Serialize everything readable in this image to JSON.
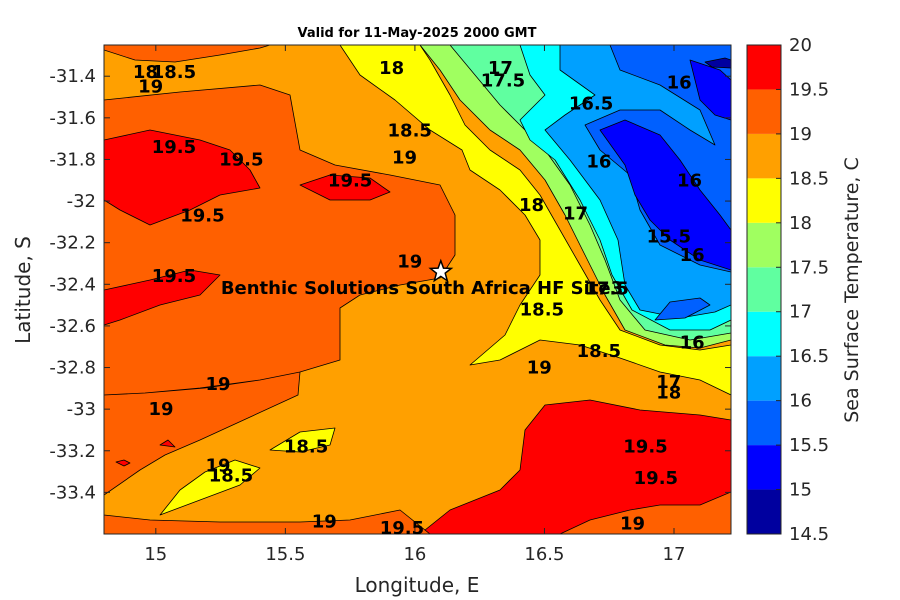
{
  "chart_data": {
    "type": "contour",
    "title": "Valid for 11-May-2025 2000 GMT",
    "xlabel": "Longitude, E",
    "ylabel": "Latitude, S",
    "xlim": [
      14.8,
      17.22
    ],
    "ylim": [
      -33.6,
      -31.25
    ],
    "xticks": [
      15,
      15.5,
      16,
      16.5,
      17
    ],
    "xtick_labels": [
      "15",
      "15.5",
      "16",
      "16.5",
      "17"
    ],
    "yticks": [
      -31.4,
      -31.6,
      -31.8,
      -32,
      -32.2,
      -32.4,
      -32.6,
      -32.8,
      -33,
      -33.2,
      -33.4
    ],
    "ytick_labels": [
      "-31.4",
      "-31.6",
      "-31.8",
      "-32",
      "-32.2",
      "-32.4",
      "-32.6",
      "-32.8",
      "-33",
      "-33.2",
      "-33.4"
    ],
    "colorbar": {
      "label": "Sea Surface Temperature, C",
      "min": 14.5,
      "max": 20,
      "ticks": [
        "14.5",
        "15",
        "15.5",
        "16",
        "16.5",
        "17",
        "17.5",
        "18",
        "18.5",
        "19",
        "19.5",
        "20"
      ],
      "colors": [
        "#00009f",
        "#0000ff",
        "#0060ff",
        "#00a0ff",
        "#00ffff",
        "#60ffa0",
        "#a0ff60",
        "#ffff00",
        "#ffa000",
        "#ff6000",
        "#ff0000"
      ]
    },
    "contour_labels": [
      {
        "text": "18",
        "x": 14.96,
        "y": -31.38
      },
      {
        "text": "18.5",
        "x": 15.07,
        "y": -31.38
      },
      {
        "text": "19",
        "x": 14.98,
        "y": -31.45
      },
      {
        "text": "18",
        "x": 15.91,
        "y": -31.36
      },
      {
        "text": "17",
        "x": 16.33,
        "y": -31.36
      },
      {
        "text": "17.5",
        "x": 16.34,
        "y": -31.42
      },
      {
        "text": "16",
        "x": 17.02,
        "y": -31.43
      },
      {
        "text": "16.5",
        "x": 16.68,
        "y": -31.53
      },
      {
        "text": "18.5",
        "x": 15.98,
        "y": -31.66
      },
      {
        "text": "19.5",
        "x": 15.07,
        "y": -31.74
      },
      {
        "text": "19.5",
        "x": 15.33,
        "y": -31.8
      },
      {
        "text": "19",
        "x": 15.96,
        "y": -31.79
      },
      {
        "text": "16",
        "x": 16.71,
        "y": -31.81
      },
      {
        "text": "19.5",
        "x": 15.75,
        "y": -31.9
      },
      {
        "text": "16",
        "x": 17.06,
        "y": -31.9
      },
      {
        "text": "18",
        "x": 16.45,
        "y": -32.02
      },
      {
        "text": "17",
        "x": 16.62,
        "y": -32.06
      },
      {
        "text": "19.5",
        "x": 15.18,
        "y": -32.07
      },
      {
        "text": "15.5",
        "x": 16.98,
        "y": -32.17
      },
      {
        "text": "16",
        "x": 17.07,
        "y": -32.26
      },
      {
        "text": "19",
        "x": 15.98,
        "y": -32.29
      },
      {
        "text": "19.5",
        "x": 15.07,
        "y": -32.36
      },
      {
        "text": "17.5",
        "x": 16.74,
        "y": -32.42
      },
      {
        "text": "18.5",
        "x": 16.49,
        "y": -32.52
      },
      {
        "text": "16",
        "x": 17.07,
        "y": -32.68
      },
      {
        "text": "18.5",
        "x": 16.71,
        "y": -32.72
      },
      {
        "text": "19",
        "x": 16.48,
        "y": -32.8
      },
      {
        "text": "19",
        "x": 15.24,
        "y": -32.88
      },
      {
        "text": "17",
        "x": 16.98,
        "y": -32.87
      },
      {
        "text": "18",
        "x": 16.98,
        "y": -32.92
      },
      {
        "text": "19",
        "x": 15.02,
        "y": -33.0
      },
      {
        "text": "18.5",
        "x": 15.58,
        "y": -33.18
      },
      {
        "text": "19.5",
        "x": 16.89,
        "y": -33.18
      },
      {
        "text": "19",
        "x": 15.24,
        "y": -33.27
      },
      {
        "text": "18.5",
        "x": 15.29,
        "y": -33.32
      },
      {
        "text": "19.5",
        "x": 16.93,
        "y": -33.33
      },
      {
        "text": "19",
        "x": 15.65,
        "y": -33.54
      },
      {
        "text": "19.5",
        "x": 15.95,
        "y": -33.57
      },
      {
        "text": "19",
        "x": 16.84,
        "y": -33.55
      }
    ],
    "annotations": [
      {
        "text": "Benthic Solutions South Africa HF Site3",
        "x": 16.1,
        "y": -32.34,
        "marker": "star"
      }
    ]
  }
}
